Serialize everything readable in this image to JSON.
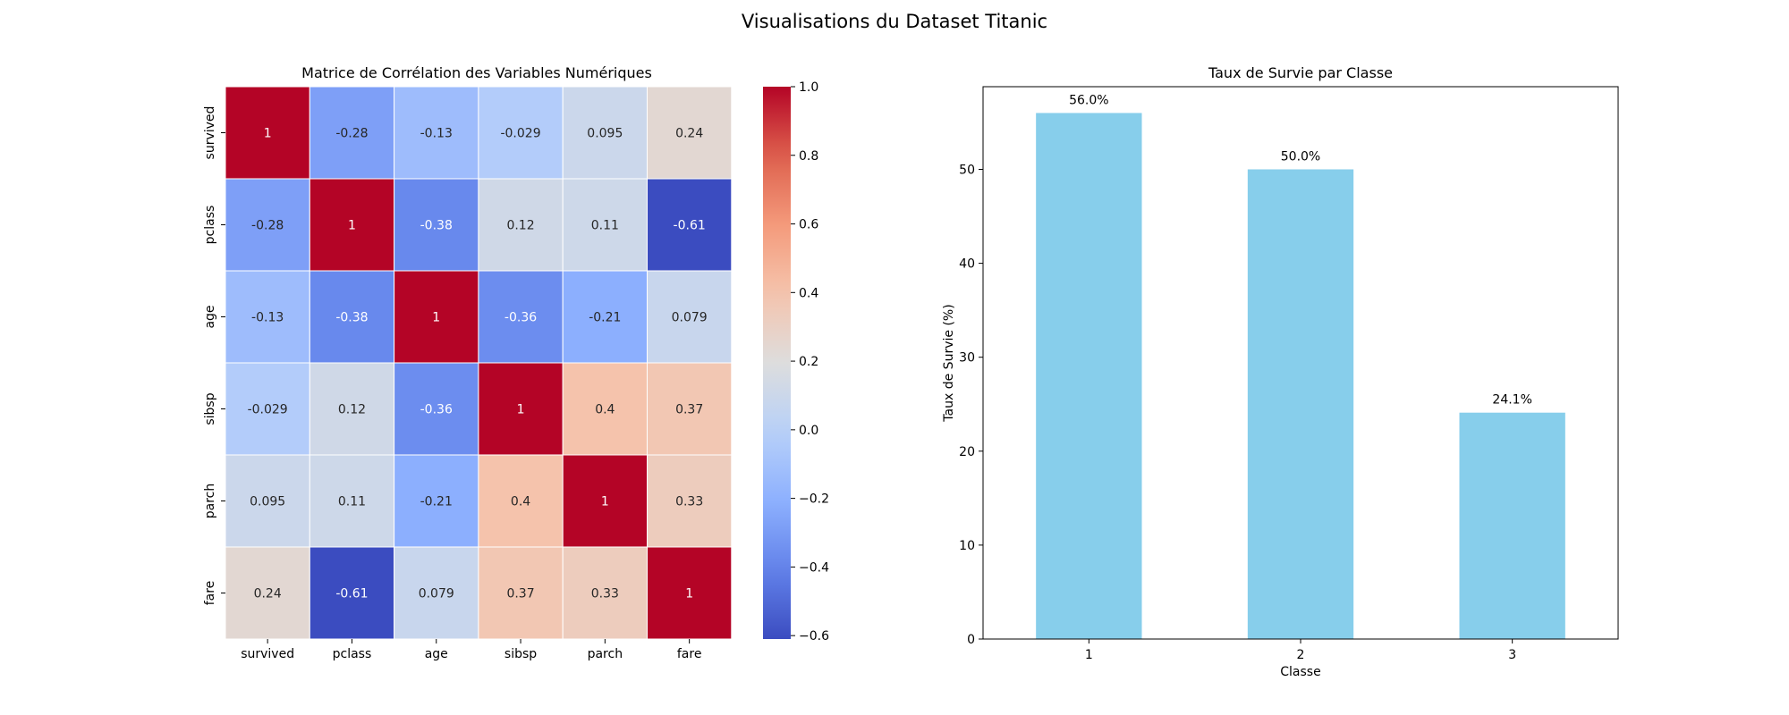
{
  "figure": {
    "suptitle": "Visualisations du Dataset Titanic"
  },
  "chart_data": [
    {
      "type": "heatmap",
      "title": "Matrice de Corrélation des Variables Numériques",
      "row_labels": [
        "survived",
        "pclass",
        "age",
        "sibsp",
        "parch",
        "fare"
      ],
      "col_labels": [
        "survived",
        "pclass",
        "age",
        "sibsp",
        "parch",
        "fare"
      ],
      "values": [
        [
          1,
          -0.28,
          -0.13,
          -0.029,
          0.095,
          0.24
        ],
        [
          -0.28,
          1,
          -0.38,
          0.12,
          0.11,
          -0.61
        ],
        [
          -0.13,
          -0.38,
          1,
          -0.36,
          -0.21,
          0.079
        ],
        [
          -0.029,
          0.12,
          -0.36,
          1,
          0.4,
          0.37
        ],
        [
          0.095,
          0.11,
          -0.21,
          0.4,
          1,
          0.33
        ],
        [
          0.24,
          -0.61,
          0.079,
          0.37,
          0.33,
          1
        ]
      ],
      "cell_labels": [
        [
          "1",
          "-0.28",
          "-0.13",
          "-0.029",
          "0.095",
          "0.24"
        ],
        [
          "-0.28",
          "1",
          "-0.38",
          "0.12",
          "0.11",
          "-0.61"
        ],
        [
          "-0.13",
          "-0.38",
          "1",
          "-0.36",
          "-0.21",
          "0.079"
        ],
        [
          "-0.029",
          "0.12",
          "-0.36",
          "1",
          "0.4",
          "0.37"
        ],
        [
          "0.095",
          "0.11",
          "-0.21",
          "0.4",
          "1",
          "0.33"
        ],
        [
          "0.24",
          "-0.61",
          "0.079",
          "0.37",
          "0.33",
          "1"
        ]
      ],
      "colormap": "coolwarm",
      "vmin": -0.61,
      "vmax": 1.0,
      "colorbar_ticks": [
        1.0,
        0.8,
        0.6,
        0.4,
        0.2,
        0.0,
        -0.2,
        -0.4,
        -0.6
      ],
      "colorbar_tick_labels": [
        "1.0",
        "0.8",
        "0.6",
        "0.4",
        "0.2",
        "0.0",
        "−0.2",
        "−0.4",
        "−0.6"
      ]
    },
    {
      "type": "bar",
      "title": "Taux de Survie par Classe",
      "categories": [
        "1",
        "2",
        "3"
      ],
      "values": [
        56.0,
        50.0,
        24.1
      ],
      "value_labels": [
        "56.0%",
        "50.0%",
        "24.1%"
      ],
      "xlabel": "Classe",
      "ylabel": "Taux de Survie (%)",
      "ylim": [
        0,
        58.8
      ],
      "yticks": [
        0,
        10,
        20,
        30,
        40,
        50
      ],
      "ytick_labels": [
        "0",
        "10",
        "20",
        "30",
        "40",
        "50"
      ],
      "bar_color": "#87ceeb"
    }
  ]
}
